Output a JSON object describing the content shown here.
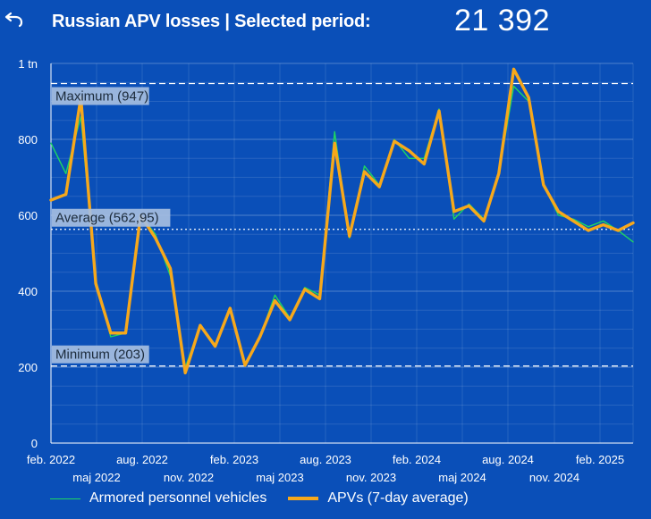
{
  "header": {
    "title": "Russian APV losses | Selected period:",
    "total": "21 392"
  },
  "colors": {
    "background": "#0a4fb8",
    "series_raw": "#1ed760",
    "series_avg": "#f7a81b",
    "label_box": "#a6bedf"
  },
  "icons": {
    "back": "undo-arrow-icon"
  },
  "chart_data": {
    "type": "line",
    "x_tick_labels_row1": [
      "feb. 2022",
      "aug. 2022",
      "feb. 2023",
      "aug. 2023",
      "feb. 2024",
      "aug. 2024",
      "feb. 2025"
    ],
    "x_tick_labels_row2": [
      "maj 2022",
      "nov. 2022",
      "maj 2023",
      "nov. 2023",
      "maj 2024",
      "nov. 2024"
    ],
    "y_tick_labels": [
      "0",
      "200",
      "400",
      "600",
      "800",
      "1 tn"
    ],
    "ylim": [
      0,
      1000
    ],
    "grid": true,
    "reference_lines": [
      {
        "label": "Maximum (947)",
        "value": 947
      },
      {
        "label": "Average (562,95)",
        "value": 562.95
      },
      {
        "label": "Minimum (203)",
        "value": 203
      }
    ],
    "legend_position": "bottom-left",
    "series": [
      {
        "name": "Armored personnel vehicles",
        "color": "#1ed760",
        "x": [
          1,
          2,
          3,
          4,
          5,
          6,
          7,
          8,
          9,
          10,
          11,
          12,
          13,
          14,
          15,
          16,
          17,
          18,
          19,
          20,
          21,
          22,
          23,
          24,
          25,
          26,
          27,
          28,
          29,
          30,
          31,
          32,
          33,
          34,
          35,
          36,
          37,
          38,
          39,
          40
        ],
        "values": [
          790,
          710,
          860,
          430,
          280,
          290,
          600,
          550,
          440,
          200,
          310,
          260,
          350,
          210,
          280,
          390,
          330,
          410,
          390,
          820,
          540,
          730,
          680,
          800,
          750,
          750,
          880,
          590,
          630,
          590,
          710,
          940,
          900,
          680,
          600,
          590,
          570,
          585,
          560,
          530
        ]
      },
      {
        "name": "APVs (7-day average)",
        "color": "#f7a81b",
        "x": [
          1,
          2,
          3,
          4,
          5,
          6,
          7,
          8,
          9,
          10,
          11,
          12,
          13,
          14,
          15,
          16,
          17,
          18,
          19,
          20,
          21,
          22,
          23,
          24,
          25,
          26,
          27,
          28,
          29,
          30,
          31,
          32,
          33,
          34,
          35,
          36,
          37,
          38,
          39,
          40
        ],
        "values": [
          640,
          655,
          910,
          420,
          290,
          290,
          600,
          540,
          460,
          185,
          310,
          255,
          355,
          205,
          280,
          375,
          325,
          405,
          380,
          790,
          545,
          715,
          675,
          795,
          770,
          735,
          875,
          610,
          625,
          585,
          710,
          985,
          910,
          680,
          610,
          585,
          560,
          575,
          560,
          580
        ]
      }
    ]
  },
  "legend": {
    "raw_label": "Armored personnel vehicles",
    "avg_label": "APVs (7-day average)"
  }
}
